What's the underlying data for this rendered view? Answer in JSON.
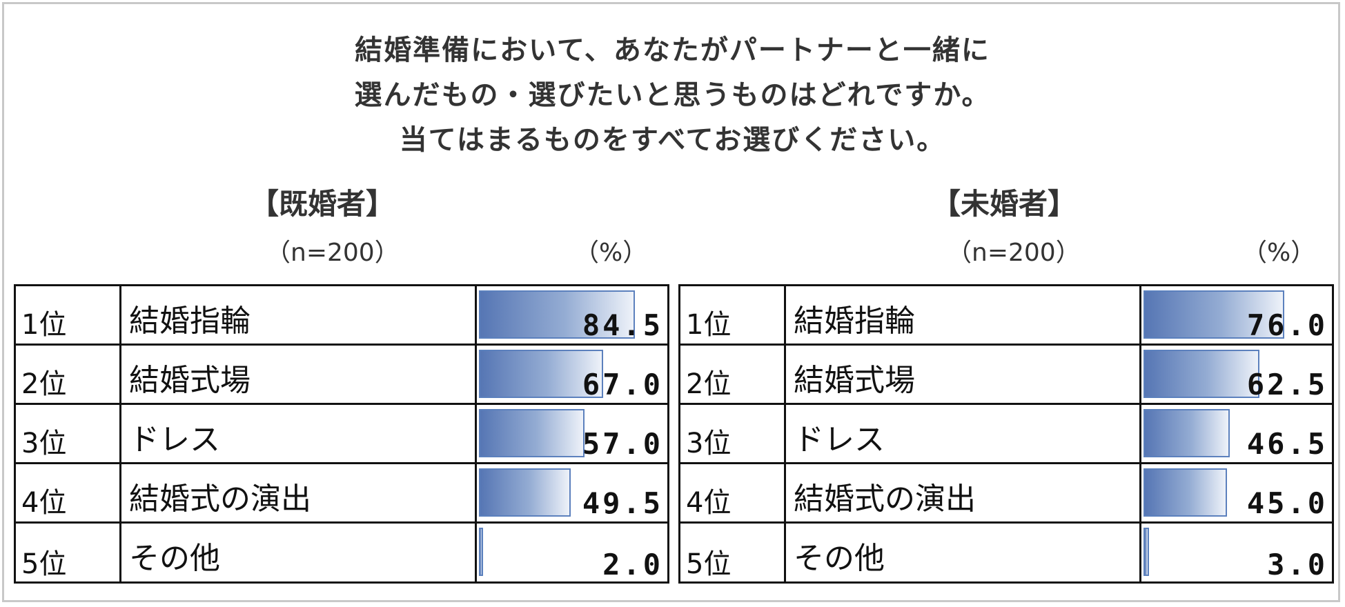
{
  "title_lines": [
    "結婚準備において、あなたがパートナーと一緒に",
    "選んだもの・選びたいと思うものはどれですか。",
    "当てはまるものをすべてお選びください。"
  ],
  "colors": {
    "bar_dark": "#5676b4",
    "bar_light": "#eef2f9",
    "bar_border": "#5b80bd"
  },
  "chart_data": [
    {
      "type": "bar",
      "group": "【既婚者】",
      "n_label": "（n=200）",
      "unit_label": "（%）",
      "xlim": [
        0,
        100
      ],
      "categories": [
        "結婚指輪",
        "結婚式場",
        "ドレス",
        "結婚式の演出",
        "その他"
      ],
      "ranks": [
        "1位",
        "2位",
        "3位",
        "4位",
        "5位"
      ],
      "values": [
        84.5,
        67.0,
        57.0,
        49.5,
        2.0
      ],
      "value_labels": [
        "84.5",
        "67.0",
        "57.0",
        "49.5",
        "2.0"
      ]
    },
    {
      "type": "bar",
      "group": "【未婚者】",
      "n_label": "（n=200）",
      "unit_label": "（%）",
      "xlim": [
        0,
        100
      ],
      "categories": [
        "結婚指輪",
        "結婚式場",
        "ドレス",
        "結婚式の演出",
        "その他"
      ],
      "ranks": [
        "1位",
        "2位",
        "3位",
        "4位",
        "5位"
      ],
      "values": [
        76.0,
        62.5,
        46.5,
        45.0,
        3.0
      ],
      "value_labels": [
        "76.0",
        "62.5",
        "46.5",
        "45.0",
        "3.0"
      ]
    }
  ]
}
